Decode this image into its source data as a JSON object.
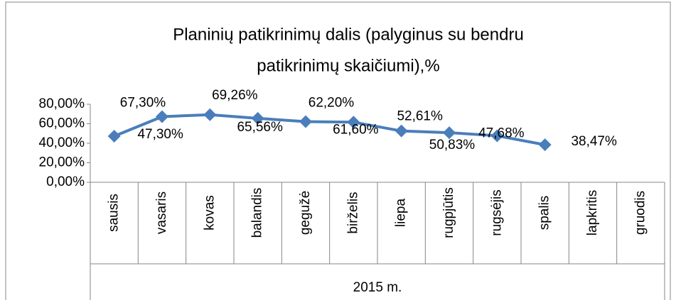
{
  "chart_data": {
    "type": "line",
    "title": [
      "Planinių patikrinimų dalis (palyginus su bendru",
      "patikrinimų skaičiumi),%"
    ],
    "categories": [
      "sausis",
      "vasaris",
      "kovas",
      "balandis",
      "gegužė",
      "birželis",
      "liepa",
      "rugpjūtis",
      "rugsėjis",
      "spalis",
      "lapkritis",
      "gruodis"
    ],
    "category_group": "2015 m.",
    "series": [
      {
        "color": "#4a7ebb",
        "values": [
          47.3,
          67.3,
          69.26,
          65.56,
          62.2,
          61.6,
          52.61,
          50.83,
          47.68,
          38.47,
          null,
          null
        ],
        "value_labels": [
          "47,30%",
          "67,30%",
          "69,26%",
          "65,56%",
          "62,20%",
          "61,60%",
          "52,61%",
          "50,83%",
          "47,68%",
          "38,47%",
          null,
          null
        ]
      }
    ],
    "ylim": [
      0,
      80
    ],
    "yticks": [
      {
        "value": 0,
        "label": "0,00%"
      },
      {
        "value": 20,
        "label": "20,00%"
      },
      {
        "value": 40,
        "label": "40,00%"
      },
      {
        "value": 60,
        "label": "60,00%"
      },
      {
        "value": 80,
        "label": "80,00%"
      }
    ],
    "legend": false
  }
}
